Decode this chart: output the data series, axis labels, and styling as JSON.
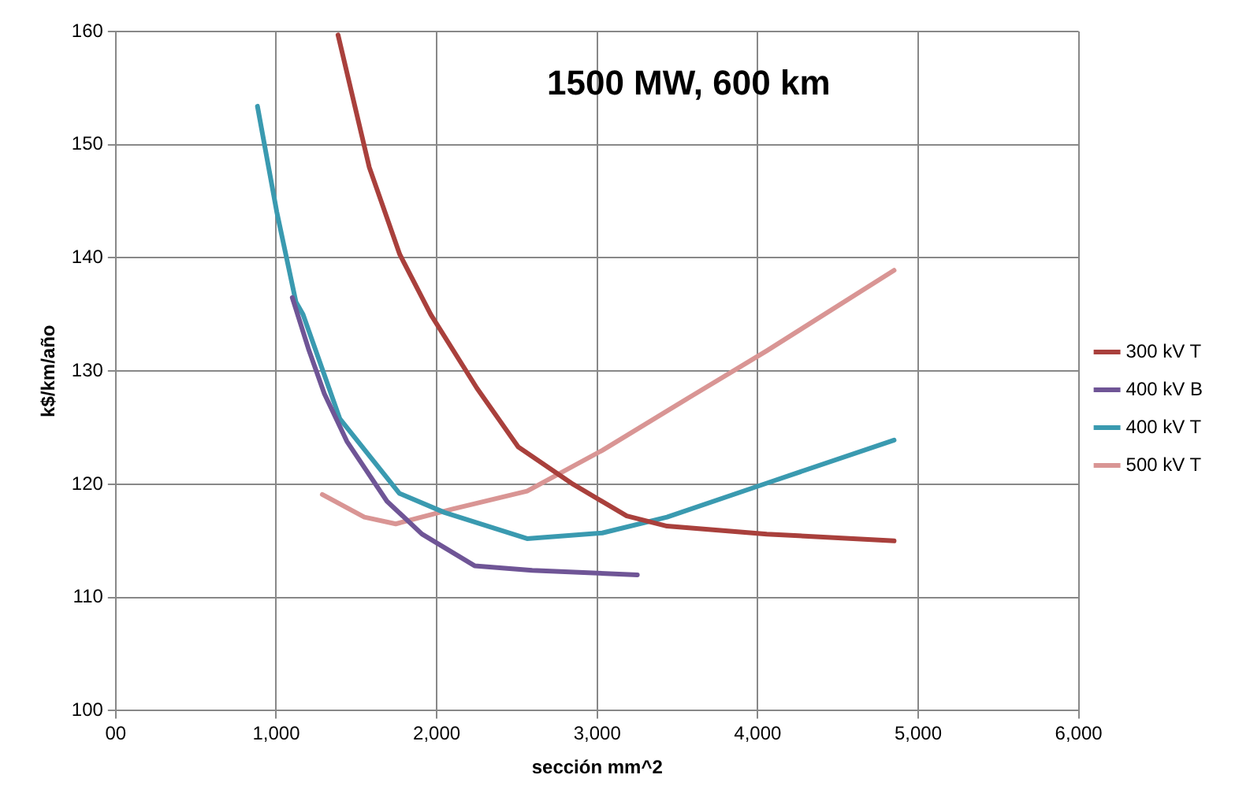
{
  "chart_data": {
    "type": "line",
    "title": "1500 MW, 600 km",
    "xlabel": "sección mm^2",
    "ylabel": "k$/km/año",
    "xlim": [
      0,
      6000
    ],
    "xticks": [
      {
        "value": 0,
        "label": "00"
      },
      {
        "value": 1000,
        "label": "1,000"
      },
      {
        "value": 2000,
        "label": "2,000"
      },
      {
        "value": 3000,
        "label": "3,000"
      },
      {
        "value": 4000,
        "label": "4,000"
      },
      {
        "value": 5000,
        "label": "5,000"
      },
      {
        "value": 6000,
        "label": "6,000"
      }
    ],
    "ylim": [
      100,
      160
    ],
    "yticks": [
      100,
      110,
      120,
      130,
      140,
      150,
      160
    ],
    "grid": true,
    "legend": "right",
    "marker": "none",
    "line_style": "solid",
    "series": [
      {
        "name": "300 kV T",
        "color": "#a9403c",
        "x": [
          1385,
          1580,
          1770,
          1963,
          2250,
          2508,
          2850,
          3184,
          3435,
          4057,
          4850
        ],
        "values": [
          159.7,
          148,
          140.3,
          135,
          128.5,
          123.3,
          120,
          117.2,
          116.3,
          115.6,
          115.0
        ]
      },
      {
        "name": "400 kV B",
        "color": "#6f5596",
        "x": [
          1100,
          1200,
          1300,
          1440,
          1690,
          1908,
          2236,
          2595,
          3250
        ],
        "values": [
          136.5,
          132,
          128,
          123.8,
          118.5,
          115.6,
          112.8,
          112.4,
          112.0
        ]
      },
      {
        "name": "400 kV T",
        "color": "#3a9ab0",
        "x": [
          883,
          1003,
          1123,
          1167,
          1396,
          1767,
          2050,
          2563,
          3032,
          3435,
          4057,
          4850
        ],
        "values": [
          153.4,
          144.1,
          136.1,
          135,
          125.8,
          119.2,
          117.5,
          115.2,
          115.7,
          117.1,
          120.1,
          123.9
        ]
      },
      {
        "name": "500 kV T",
        "color": "#d99594",
        "x": [
          1287,
          1549,
          1745,
          2094,
          2563,
          3032,
          3577,
          4057,
          4850
        ],
        "values": [
          119.1,
          117.1,
          116.5,
          117.8,
          119.4,
          123.0,
          127.7,
          131.8,
          138.9
        ]
      }
    ]
  }
}
